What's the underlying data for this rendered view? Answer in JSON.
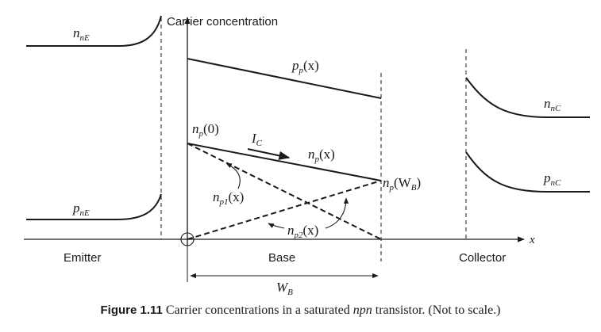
{
  "diagram": {
    "y_axis_label": "Carrier concentration",
    "x_axis_label": "x",
    "regions": {
      "emitter": "Emitter",
      "base": "Base",
      "collector": "Collector"
    },
    "curves": {
      "nnE": {
        "base": "n",
        "sub": "nE"
      },
      "pnE": {
        "base": "p",
        "sub": "nE"
      },
      "ppx": {
        "base": "p",
        "sub": "p",
        "arg": "(x)"
      },
      "np0": {
        "base": "n",
        "sub": "p",
        "arg": "(0)"
      },
      "npx": {
        "base": "n",
        "sub": "p",
        "arg": "(x)"
      },
      "npWB": {
        "base": "n",
        "sub": "p",
        "arg_open": "(W",
        "arg_sub": "B",
        "arg_close": ")"
      },
      "np1": {
        "base": "n",
        "sub": "p1",
        "arg": "(x)"
      },
      "np2": {
        "base": "n",
        "sub": "p2",
        "arg": "(x)"
      },
      "nnC": {
        "base": "n",
        "sub": "nC"
      },
      "pnC": {
        "base": "p",
        "sub": "nC"
      },
      "IC": {
        "base": "I",
        "sub": "C"
      },
      "WB": {
        "base": "W",
        "sub": "B"
      }
    }
  },
  "caption": {
    "figure_label": "Figure 1.11",
    "text_before": "Carrier concentrations in a saturated",
    "text_italic": "npn",
    "text_after": "transistor. (Not to scale.)"
  }
}
